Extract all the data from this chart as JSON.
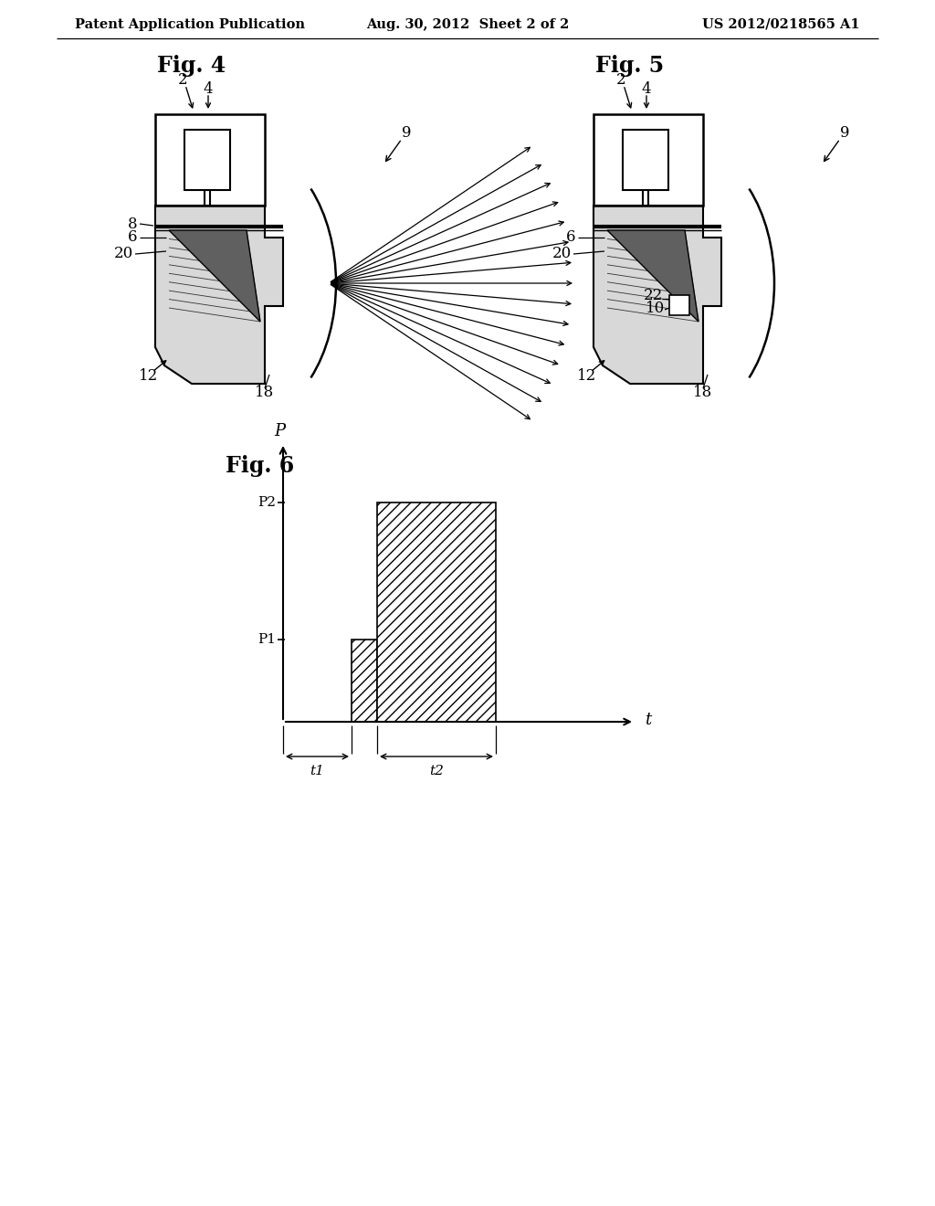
{
  "background_color": "#ffffff",
  "header_left": "Patent Application Publication",
  "header_center": "Aug. 30, 2012  Sheet 2 of 2",
  "header_right": "US 2012/0218565 A1",
  "fig4_title": "Fig. 4",
  "fig5_title": "Fig. 5",
  "fig6_title": "Fig. 6",
  "line_color": "#000000",
  "gray_fill": "#d8d8d8",
  "dark_fill": "#606060",
  "white_fill": "#ffffff"
}
